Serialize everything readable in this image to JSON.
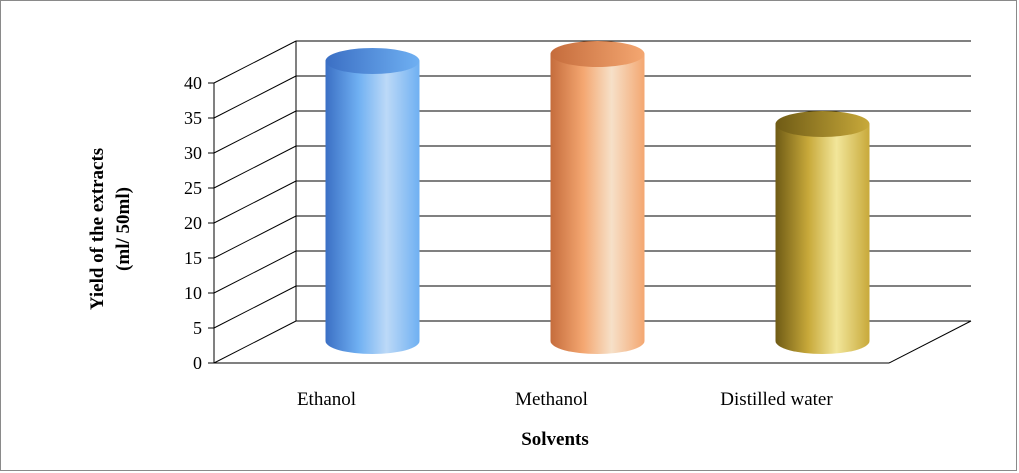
{
  "chart_data": {
    "type": "bar",
    "style": "3d-cylinder",
    "categories": [
      "Ethanol",
      "Methanol",
      "Distilled water"
    ],
    "values": [
      40,
      41,
      31
    ],
    "xlabel": "Solvents",
    "ylabel_lines": [
      "Yield of the extracts",
      "(ml/ 50ml)"
    ],
    "ylim": [
      0,
      40
    ],
    "yticks": [
      "0",
      "5",
      "10",
      "15",
      "20",
      "25",
      "30",
      "35",
      "40"
    ],
    "grid": true,
    "legend": "none",
    "colors": [
      {
        "light": "#bcd9f7",
        "mid": "#6fb0f2",
        "dark": "#3b6fc4"
      },
      {
        "light": "#f6e0c8",
        "mid": "#f4a771",
        "dark": "#c56c3c"
      },
      {
        "light": "#f2e69a",
        "mid": "#c8a93a",
        "dark": "#6f5b15"
      }
    ]
  }
}
